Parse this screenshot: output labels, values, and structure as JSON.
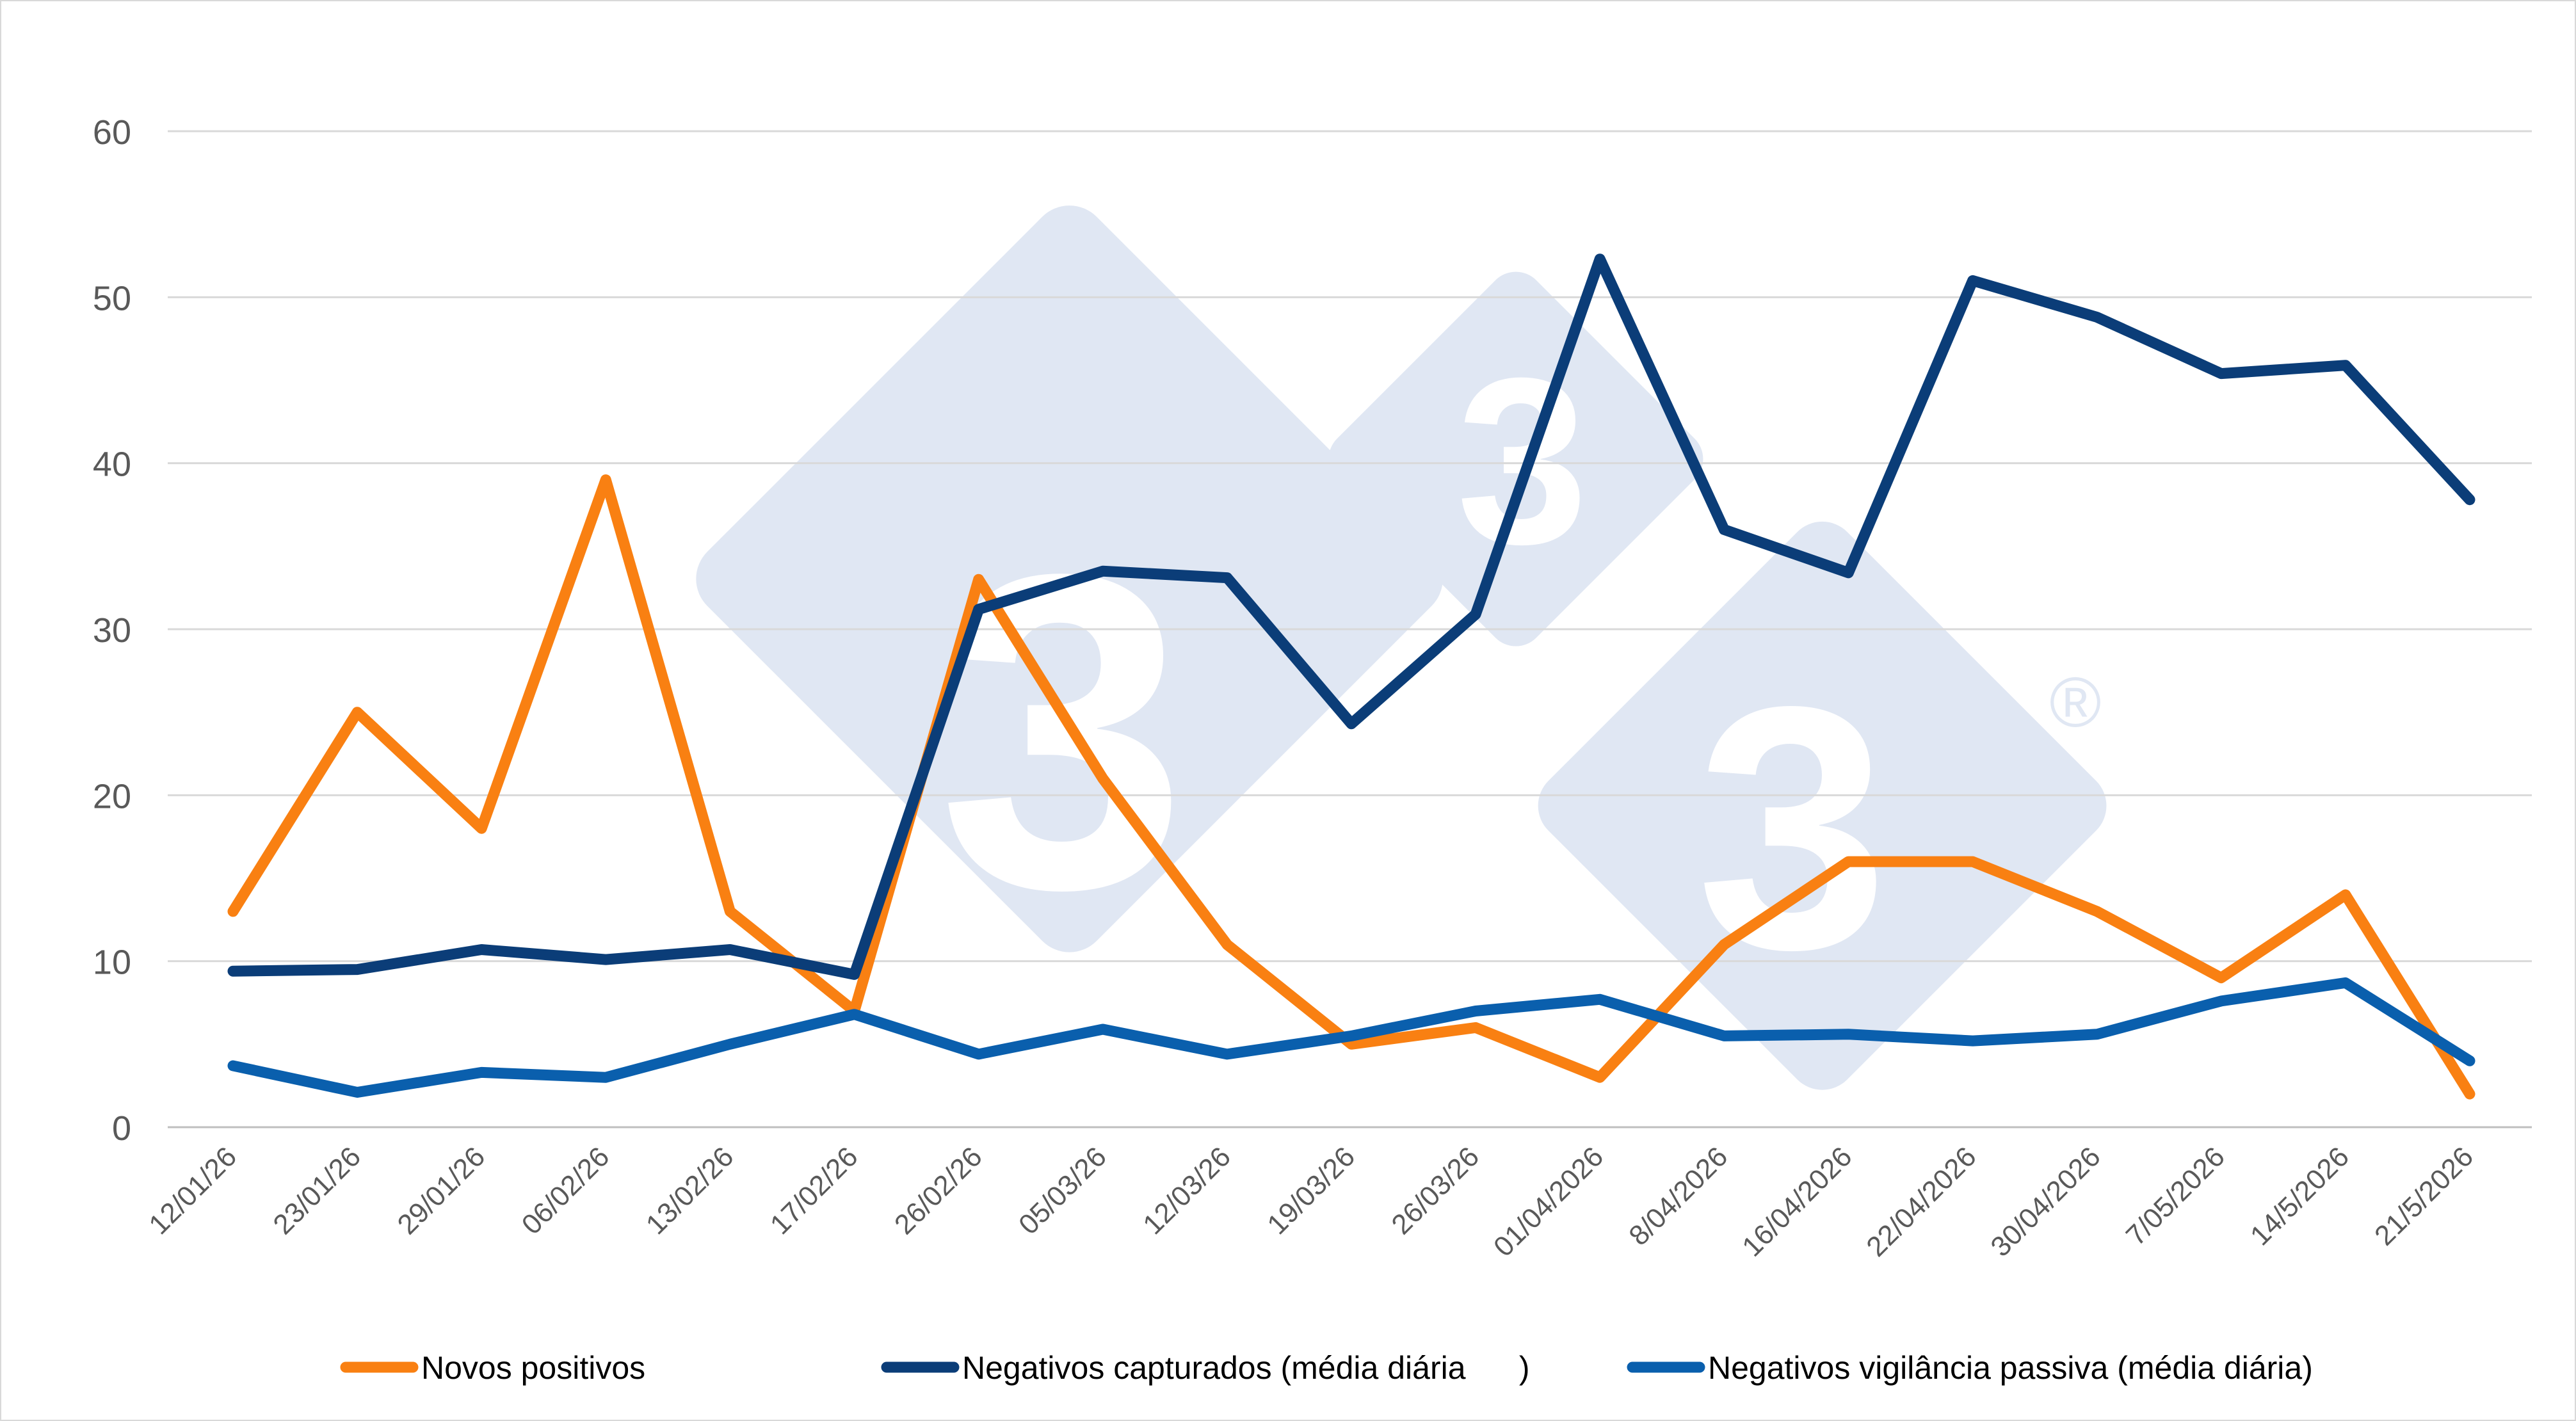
{
  "chart_data": {
    "type": "line",
    "title": "",
    "xlabel": "",
    "ylabel": "",
    "ylim": [
      0,
      60
    ],
    "yticks": [
      0,
      10,
      20,
      30,
      40,
      50,
      60
    ],
    "grid": true,
    "legend_position": "bottom",
    "categories": [
      "12/01/26",
      "23/01/26",
      "29/01/26",
      "06/02/26",
      "13/02/26",
      "17/02/26",
      "26/02/26",
      "05/03/26",
      "12/03/26",
      "19/03/26",
      "26/03/26",
      "01/04/2026",
      "8/04/2026",
      "16/04/2026",
      "22/04/2026",
      "30/04/2026",
      "7/05/2026",
      "14/5/2026",
      "21/5/2026"
    ],
    "series": [
      {
        "name": "Novos positivos",
        "color": "#f98012",
        "values": [
          13,
          25,
          18,
          39,
          13,
          7,
          33,
          21,
          11,
          5,
          6,
          3,
          11,
          16,
          16,
          13,
          9,
          14,
          2
        ]
      },
      {
        "name": "Negativos capturados (média diária      )",
        "color": "#0b3d78",
        "values": [
          9.4,
          9.5,
          10.7,
          10.1,
          10.7,
          9.2,
          31.2,
          33.5,
          33.1,
          24.3,
          30.9,
          52.3,
          36,
          33.4,
          51,
          48.8,
          45.4,
          45.9,
          37.8
        ]
      },
      {
        "name": "Negativos vigilância passiva (média diária)",
        "color": "#0a5fad",
        "values": [
          3.7,
          2.1,
          3.3,
          3,
          5,
          6.8,
          4.4,
          5.9,
          4.4,
          5.5,
          7,
          7.7,
          5.5,
          5.6,
          5.2,
          5.6,
          7.6,
          8.7,
          4
        ]
      }
    ]
  },
  "watermark": {
    "digit": "3",
    "registered": "®",
    "color": "#dbe3f1"
  }
}
